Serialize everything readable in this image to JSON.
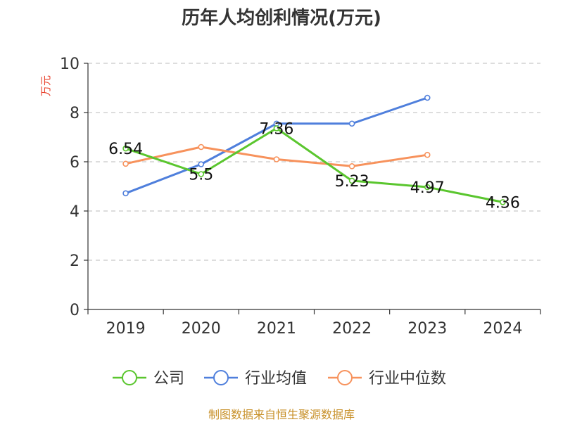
{
  "chart_data": {
    "type": "line",
    "title": "历年人均创利情况(万元)",
    "ylabel": "万元",
    "ylim": [
      0,
      10
    ],
    "yticks": [
      0,
      2,
      4,
      6,
      8,
      10
    ],
    "categories": [
      "2019",
      "2020",
      "2021",
      "2022",
      "2023",
      "2024"
    ],
    "grid": true,
    "legend_position": "bottom",
    "series": [
      {
        "name": "公司",
        "color": "#5ac62e",
        "values": [
          6.54,
          5.5,
          7.36,
          5.23,
          4.97,
          4.36
        ],
        "labels": [
          "6.54",
          "5.5",
          "7.36",
          "5.23",
          "4.97",
          "4.36"
        ]
      },
      {
        "name": "行业均值",
        "color": "#4f7fdc",
        "values": [
          4.72,
          5.9,
          7.55,
          7.55,
          8.6,
          null
        ]
      },
      {
        "name": "行业中位数",
        "color": "#f7925c",
        "values": [
          5.92,
          6.6,
          6.1,
          5.82,
          6.28,
          null
        ]
      }
    ]
  },
  "source_text": "制图数据来自恒生聚源数据库"
}
